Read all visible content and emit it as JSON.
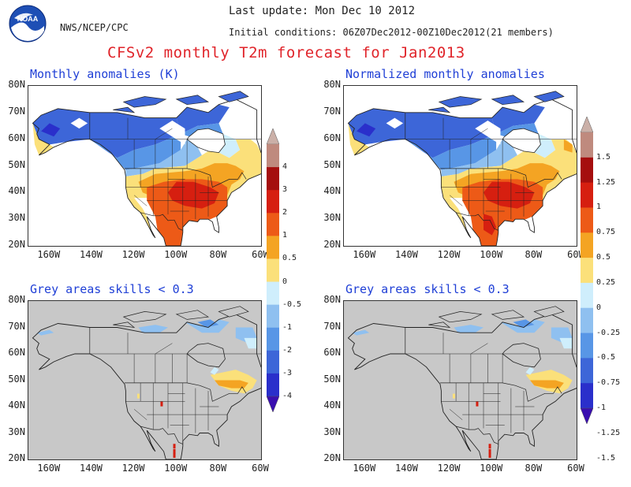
{
  "header": {
    "org": "NWS/NCEP/CPC",
    "last_update": "Last update: Mon Dec 10 2012",
    "initial_conditions": "Initial conditions: 06Z07Dec2012-00Z10Dec2012(21 members)",
    "title": "CFSv2 monthly T2m forecast for Jan2013"
  },
  "logo": {
    "text": "NOAA",
    "icon": "noaa-logo-icon"
  },
  "panels": [
    {
      "title": "Monthly anomalies (K)",
      "skill_mask": false
    },
    {
      "title": "Normalized monthly anomalies",
      "skill_mask": false
    },
    {
      "title": "Grey areas skills < 0.3",
      "skill_mask": true
    },
    {
      "title": "Grey areas skills < 0.3",
      "skill_mask": true
    }
  ],
  "axes": {
    "lon_ticks": [
      "160W",
      "140W",
      "120W",
      "100W",
      "80W",
      "60W"
    ],
    "lat_ticks": [
      "80N",
      "70N",
      "60N",
      "50N",
      "40N",
      "30N",
      "20N"
    ]
  },
  "colorbars": [
    {
      "labels": [
        "4",
        "3",
        "2",
        "1",
        "0.5",
        "0",
        "-0.5",
        "-1",
        "-2",
        "-3",
        "-4"
      ]
    },
    {
      "labels": [
        "1.5",
        "1.25",
        "1",
        "0.75",
        "0.5",
        "0.25",
        "0",
        "-0.25",
        "-0.5",
        "-0.75",
        "-1",
        "-1.25",
        "-1.5"
      ]
    }
  ],
  "colors": {
    "bins": [
      "#3a0fb0",
      "#2a2fcb",
      "#3d66d8",
      "#5896e6",
      "#8fc0f0",
      "#cfeefc",
      "#fbe07a",
      "#f4a423",
      "#ed5a17",
      "#d61f10",
      "#a50e0e",
      "#bf8a7e",
      "#cbb0a8"
    ],
    "grey": "#c8c8c8",
    "land_border": "#222222",
    "title_red": "#e0242a",
    "panel_blue": "#1f3fd6"
  }
}
